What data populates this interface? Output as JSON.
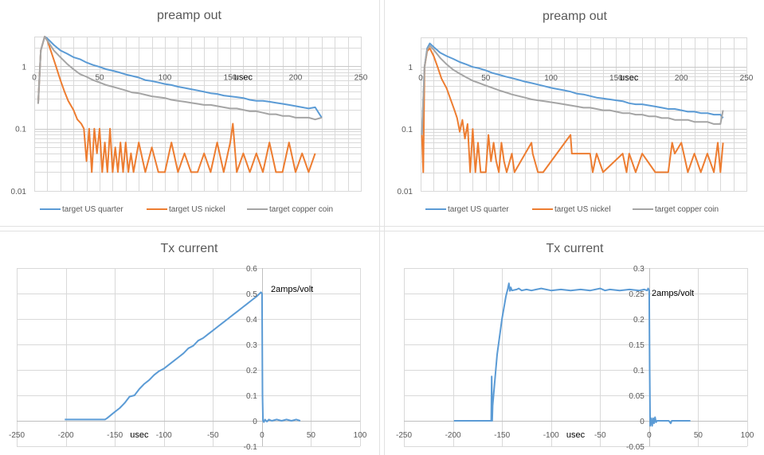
{
  "colors": {
    "quarter": "#5b9bd5",
    "nickel": "#ed7d31",
    "copper": "#a5a5a5",
    "grid": "#d9d9d9",
    "axis": "#bfbfbf",
    "text": "#595959"
  },
  "chart_data": [
    {
      "id": "preamp-left",
      "type": "line",
      "title": "preamp out",
      "xlabel": "usec",
      "yscale": "log",
      "xlim": [
        0,
        250
      ],
      "ylim": [
        0.01,
        3
      ],
      "xticks": [
        0,
        50,
        100,
        150,
        200,
        250
      ],
      "yticks": [
        {
          "value": 0.01,
          "label": "0.01"
        },
        {
          "value": 0.1,
          "label": "0.1"
        },
        {
          "value": 1,
          "label": "1"
        }
      ],
      "x_minor_step": 10,
      "grid": true,
      "legend": "bottom",
      "series": [
        {
          "name": "target US quarter",
          "color_key": "quarter",
          "x": [
            3,
            5,
            8,
            10,
            15,
            20,
            25,
            30,
            35,
            40,
            45,
            50,
            55,
            60,
            65,
            70,
            75,
            80,
            85,
            90,
            95,
            100,
            105,
            110,
            115,
            120,
            125,
            130,
            135,
            140,
            145,
            150,
            155,
            160,
            165,
            170,
            175,
            180,
            185,
            190,
            195,
            200,
            205,
            210,
            215,
            220
          ],
          "y": [
            0.25,
            1.8,
            3.0,
            2.8,
            2.2,
            1.8,
            1.6,
            1.4,
            1.3,
            1.15,
            1.05,
            0.98,
            0.9,
            0.85,
            0.8,
            0.74,
            0.7,
            0.66,
            0.6,
            0.58,
            0.55,
            0.52,
            0.5,
            0.47,
            0.45,
            0.43,
            0.41,
            0.39,
            0.37,
            0.36,
            0.34,
            0.33,
            0.32,
            0.31,
            0.29,
            0.28,
            0.28,
            0.27,
            0.26,
            0.25,
            0.24,
            0.23,
            0.22,
            0.21,
            0.22,
            0.15
          ]
        },
        {
          "name": "target US nickel",
          "color_key": "nickel",
          "x": [
            3,
            5,
            8,
            10,
            13,
            16,
            20,
            23,
            26,
            30,
            33,
            36,
            38,
            40,
            42,
            44,
            46,
            48,
            50,
            52,
            54,
            56,
            58,
            60,
            62,
            64,
            66,
            68,
            70,
            72,
            74,
            76,
            80,
            85,
            90,
            95,
            100,
            105,
            110,
            115,
            120,
            125,
            130,
            135,
            140,
            145,
            150,
            152,
            155,
            160,
            165,
            170,
            175,
            180,
            185,
            190,
            195,
            200,
            205,
            210,
            215
          ],
          "y": [
            0.25,
            1.8,
            3.0,
            2.6,
            1.7,
            1.1,
            0.6,
            0.4,
            0.28,
            0.2,
            0.14,
            0.12,
            0.1,
            0.03,
            0.1,
            0.02,
            0.1,
            0.04,
            0.1,
            0.02,
            0.06,
            0.02,
            0.1,
            0.02,
            0.05,
            0.02,
            0.06,
            0.02,
            0.06,
            0.02,
            0.04,
            0.02,
            0.06,
            0.02,
            0.05,
            0.02,
            0.02,
            0.06,
            0.02,
            0.04,
            0.02,
            0.02,
            0.04,
            0.02,
            0.06,
            0.02,
            0.06,
            0.12,
            0.02,
            0.04,
            0.02,
            0.04,
            0.02,
            0.06,
            0.02,
            0.02,
            0.06,
            0.02,
            0.04,
            0.02,
            0.04
          ]
        },
        {
          "name": "target copper coin",
          "color_key": "copper",
          "x": [
            3,
            5,
            8,
            10,
            15,
            20,
            25,
            30,
            35,
            40,
            45,
            50,
            55,
            60,
            65,
            70,
            75,
            80,
            85,
            90,
            95,
            100,
            105,
            110,
            115,
            120,
            125,
            130,
            135,
            140,
            145,
            150,
            155,
            160,
            165,
            170,
            175,
            180,
            185,
            190,
            195,
            200,
            205,
            210,
            215,
            220
          ],
          "y": [
            0.25,
            1.8,
            3.0,
            2.6,
            1.8,
            1.4,
            1.1,
            0.9,
            0.75,
            0.68,
            0.6,
            0.55,
            0.5,
            0.47,
            0.44,
            0.41,
            0.38,
            0.37,
            0.35,
            0.33,
            0.32,
            0.31,
            0.29,
            0.28,
            0.27,
            0.26,
            0.25,
            0.24,
            0.24,
            0.23,
            0.22,
            0.21,
            0.21,
            0.2,
            0.19,
            0.19,
            0.18,
            0.17,
            0.17,
            0.16,
            0.16,
            0.15,
            0.15,
            0.15,
            0.14,
            0.15
          ]
        }
      ]
    },
    {
      "id": "preamp-right",
      "type": "line",
      "title": "preamp out",
      "xlabel": "usec",
      "yscale": "log",
      "xlim": [
        0,
        250
      ],
      "ylim": [
        0.01,
        3
      ],
      "xticks": [
        0,
        50,
        100,
        150,
        200,
        250
      ],
      "yticks": [
        {
          "value": 0.01,
          "label": "0.01"
        },
        {
          "value": 0.1,
          "label": "0.1"
        },
        {
          "value": 1,
          "label": "1"
        }
      ],
      "x_minor_step": 10,
      "grid": true,
      "legend": "bottom",
      "series": [
        {
          "name": "target US quarter",
          "color_key": "quarter",
          "x": [
            1,
            3,
            5,
            7,
            10,
            15,
            20,
            25,
            30,
            35,
            40,
            45,
            50,
            55,
            60,
            65,
            70,
            75,
            80,
            85,
            90,
            95,
            100,
            105,
            110,
            115,
            120,
            125,
            130,
            135,
            140,
            145,
            150,
            155,
            160,
            165,
            170,
            175,
            180,
            185,
            190,
            195,
            200,
            205,
            210,
            215,
            220,
            225,
            230,
            232
          ],
          "y": [
            0.08,
            1.0,
            2.0,
            2.4,
            2.1,
            1.7,
            1.5,
            1.35,
            1.2,
            1.1,
            1.0,
            0.95,
            0.88,
            0.8,
            0.75,
            0.7,
            0.66,
            0.62,
            0.58,
            0.55,
            0.52,
            0.49,
            0.46,
            0.44,
            0.42,
            0.4,
            0.37,
            0.36,
            0.34,
            0.32,
            0.31,
            0.3,
            0.29,
            0.28,
            0.26,
            0.25,
            0.25,
            0.24,
            0.23,
            0.22,
            0.21,
            0.21,
            0.2,
            0.19,
            0.19,
            0.18,
            0.18,
            0.17,
            0.17,
            0.15
          ]
        },
        {
          "name": "target US nickel",
          "color_key": "nickel",
          "x": [
            1,
            2,
            3,
            5,
            7,
            10,
            13,
            16,
            20,
            23,
            26,
            28,
            30,
            32,
            34,
            36,
            38,
            40,
            42,
            44,
            46,
            50,
            52,
            54,
            56,
            58,
            60,
            62,
            64,
            66,
            70,
            72,
            85,
            86,
            90,
            94,
            115,
            116,
            130,
            132,
            135,
            140,
            155,
            158,
            160,
            165,
            170,
            180,
            190,
            193,
            195,
            200,
            205,
            210,
            215,
            220,
            225,
            228,
            230,
            232
          ],
          "y": [
            0.08,
            0.02,
            1.0,
            1.8,
            2.0,
            1.5,
            1.0,
            0.65,
            0.45,
            0.3,
            0.2,
            0.15,
            0.09,
            0.14,
            0.07,
            0.12,
            0.02,
            0.1,
            0.02,
            0.06,
            0.02,
            0.02,
            0.08,
            0.03,
            0.06,
            0.03,
            0.02,
            0.06,
            0.03,
            0.02,
            0.04,
            0.02,
            0.06,
            0.04,
            0.02,
            0.02,
            0.08,
            0.04,
            0.04,
            0.02,
            0.04,
            0.02,
            0.04,
            0.02,
            0.04,
            0.02,
            0.04,
            0.02,
            0.02,
            0.06,
            0.04,
            0.06,
            0.02,
            0.04,
            0.02,
            0.04,
            0.02,
            0.06,
            0.02,
            0.06
          ]
        },
        {
          "name": "target copper coin",
          "color_key": "copper",
          "x": [
            1,
            3,
            5,
            7,
            10,
            15,
            20,
            25,
            30,
            35,
            40,
            45,
            50,
            55,
            60,
            65,
            70,
            75,
            80,
            85,
            90,
            95,
            100,
            105,
            110,
            115,
            120,
            125,
            130,
            135,
            140,
            145,
            150,
            155,
            160,
            165,
            170,
            175,
            180,
            185,
            190,
            195,
            200,
            205,
            210,
            215,
            220,
            225,
            230,
            232
          ],
          "y": [
            0.08,
            1.0,
            1.9,
            2.2,
            1.9,
            1.4,
            1.1,
            0.9,
            0.78,
            0.68,
            0.6,
            0.55,
            0.5,
            0.46,
            0.42,
            0.39,
            0.36,
            0.34,
            0.32,
            0.3,
            0.29,
            0.28,
            0.27,
            0.26,
            0.25,
            0.24,
            0.23,
            0.22,
            0.22,
            0.21,
            0.2,
            0.2,
            0.19,
            0.18,
            0.18,
            0.17,
            0.17,
            0.16,
            0.16,
            0.15,
            0.15,
            0.14,
            0.14,
            0.14,
            0.13,
            0.13,
            0.13,
            0.12,
            0.12,
            0.2
          ]
        }
      ]
    },
    {
      "id": "tx-left",
      "type": "line",
      "title": "Tx current",
      "xlabel": "usec",
      "annotation": "2amps/volt",
      "xlim": [
        -250,
        100
      ],
      "ylim": [
        -0.1,
        0.6
      ],
      "xticks": [
        -250,
        -200,
        -150,
        -100,
        -50,
        0,
        50,
        100
      ],
      "yticks": [
        {
          "value": -0.1,
          "label": "-0.1"
        },
        {
          "value": 0,
          "label": "0"
        },
        {
          "value": 0.1,
          "label": "0.1"
        },
        {
          "value": 0.2,
          "label": "0.2"
        },
        {
          "value": 0.3,
          "label": "0.3"
        },
        {
          "value": 0.4,
          "label": "0.4"
        },
        {
          "value": 0.5,
          "label": "0.5"
        },
        {
          "value": 0.6,
          "label": "0.6"
        }
      ],
      "grid": true,
      "series": [
        {
          "name": "Tx current",
          "color_key": "quarter",
          "x": [
            -201,
            -160,
            -158,
            -150,
            -145,
            -140,
            -135,
            -130,
            -125,
            -120,
            -115,
            -110,
            -105,
            -100,
            -95,
            -90,
            -85,
            -80,
            -75,
            -70,
            -65,
            -60,
            -55,
            -50,
            -45,
            -40,
            -35,
            -30,
            -25,
            -20,
            -15,
            -10,
            -5,
            -1,
            0,
            0.5,
            1,
            2,
            3,
            5,
            7,
            10,
            15,
            20,
            25,
            30,
            35,
            39
          ],
          "y": [
            0.005,
            0.005,
            0.01,
            0.035,
            0.05,
            0.07,
            0.095,
            0.1,
            0.125,
            0.145,
            0.16,
            0.18,
            0.195,
            0.205,
            0.22,
            0.235,
            0.25,
            0.265,
            0.285,
            0.295,
            0.315,
            0.325,
            0.34,
            0.355,
            0.37,
            0.385,
            0.4,
            0.415,
            0.43,
            0.445,
            0.46,
            0.475,
            0.49,
            0.505,
            0.5,
            0.1,
            0.0,
            -0.005,
            0.005,
            -0.003,
            0.005,
            0.0,
            0.005,
            0.0,
            0.005,
            0.0,
            0.005,
            0.0
          ]
        }
      ]
    },
    {
      "id": "tx-right",
      "type": "line",
      "title": "Tx current",
      "xlabel": "usec",
      "annotation": "2amps/volt",
      "xlim": [
        -250,
        100
      ],
      "ylim": [
        -0.05,
        0.3
      ],
      "xticks": [
        -250,
        -200,
        -150,
        -100,
        -50,
        0,
        50,
        100
      ],
      "yticks": [
        {
          "value": -0.05,
          "label": "-0.05"
        },
        {
          "value": 0,
          "label": "0"
        },
        {
          "value": 0.05,
          "label": "0.05"
        },
        {
          "value": 0.1,
          "label": "0.1"
        },
        {
          "value": 0.15,
          "label": "0.15"
        },
        {
          "value": 0.2,
          "label": "0.2"
        },
        {
          "value": 0.25,
          "label": "0.25"
        },
        {
          "value": 0.3,
          "label": "0.3"
        }
      ],
      "grid": true,
      "series": [
        {
          "name": "Tx current",
          "color_key": "quarter",
          "x": [
            -199,
            -161,
            -160.5,
            -160,
            -159.5,
            -155,
            -150,
            -146,
            -144,
            -143,
            -142,
            -141,
            -140,
            -135,
            -133,
            -130,
            -125,
            -120,
            -115,
            -110,
            -100,
            -90,
            -80,
            -70,
            -60,
            -50,
            -45,
            -40,
            -30,
            -20,
            -10,
            -5,
            -2,
            -1,
            0,
            0.5,
            1,
            2,
            3,
            4,
            5,
            6,
            7,
            8,
            10,
            15,
            20,
            22,
            23,
            25,
            30,
            35,
            42
          ],
          "y": [
            0.0,
            0.0,
            0.087,
            0.0,
            0.03,
            0.13,
            0.2,
            0.245,
            0.26,
            0.27,
            0.255,
            0.262,
            0.256,
            0.258,
            0.26,
            0.256,
            0.258,
            0.256,
            0.258,
            0.26,
            0.256,
            0.258,
            0.256,
            0.258,
            0.256,
            0.26,
            0.256,
            0.258,
            0.256,
            0.258,
            0.256,
            0.258,
            0.256,
            0.26,
            0.256,
            0.1,
            -0.01,
            0.005,
            -0.01,
            0.005,
            -0.005,
            0.007,
            -0.003,
            0.0,
            0.0,
            0.0,
            0.0,
            -0.005,
            0.0,
            0.0,
            0.0,
            0.0,
            0.0
          ]
        }
      ]
    }
  ]
}
